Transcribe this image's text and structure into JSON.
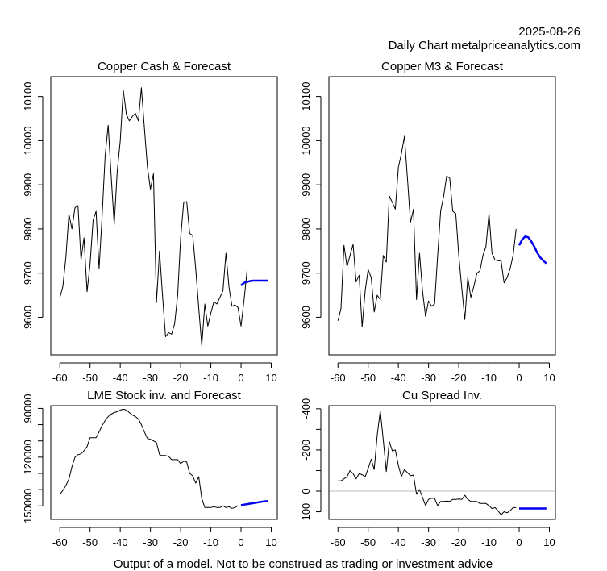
{
  "header": {
    "date": "2025-08-26",
    "subtitle": "Daily Chart metalpriceanalytics.com"
  },
  "footer": "Output of a model. Not to be construed as trading or investment advice",
  "colors": {
    "history": "#000000",
    "forecast": "#0000ee",
    "zero_line": "#bebebe"
  },
  "chart_data": [
    {
      "id": "cash",
      "type": "line",
      "title": "Copper Cash & Forecast",
      "xlabel": "",
      "ylabel": "",
      "xlim": [
        -63,
        12
      ],
      "ylim": [
        9515,
        10145
      ],
      "inverted": false,
      "xticks": [
        -60,
        -50,
        -40,
        -30,
        -20,
        -10,
        0,
        10
      ],
      "xtick_labels": [
        "-60",
        "-50",
        "-40",
        "-30",
        "-20",
        "-10",
        "0",
        "10"
      ],
      "yticks": [
        9600,
        9700,
        9800,
        9900,
        10000,
        10100
      ],
      "ytick_labels": [
        "9600",
        "9700",
        "9800",
        "9900",
        "10000",
        "10100"
      ],
      "series": [
        {
          "name": "history",
          "x_start": -60,
          "values": [
            9644,
            9670,
            9735,
            9834,
            9800,
            9848,
            9853,
            9730,
            9780,
            9658,
            9720,
            9820,
            9840,
            9710,
            9830,
            9965,
            10035,
            9920,
            9810,
            9930,
            10000,
            10115,
            10060,
            10045,
            10055,
            10062,
            10045,
            10120,
            10030,
            9940,
            9890,
            9925,
            9633,
            9750,
            9650,
            9556,
            9565,
            9562,
            9585,
            9650,
            9780,
            9860,
            9862,
            9790,
            9785,
            9710,
            9620,
            9536,
            9630,
            9580,
            9610,
            9635,
            9630,
            9645,
            9660,
            9745,
            9668,
            9625,
            9628,
            9622,
            9580,
            9640,
            9706
          ]
        },
        {
          "name": "forecast",
          "x_start": 0,
          "values": [
            9672,
            9678,
            9680,
            9682,
            9683,
            9683,
            9683,
            9683,
            9683,
            9683
          ]
        }
      ]
    },
    {
      "id": "m3",
      "type": "line",
      "title": "Copper M3 & Forecast",
      "xlabel": "",
      "ylabel": "",
      "xlim": [
        -63,
        12
      ],
      "ylim": [
        9515,
        10145
      ],
      "inverted": false,
      "xticks": [
        -60,
        -50,
        -40,
        -30,
        -20,
        -10,
        0,
        10
      ],
      "xtick_labels": [
        "-60",
        "-50",
        "-40",
        "-30",
        "-20",
        "-10",
        "0",
        "10"
      ],
      "yticks": [
        9600,
        9700,
        9800,
        9900,
        10000,
        10100
      ],
      "ytick_labels": [
        "9600",
        "9700",
        "9800",
        "9900",
        "10000",
        "10100"
      ],
      "series": [
        {
          "name": "history",
          "x_start": -60,
          "values": [
            9592,
            9620,
            9763,
            9715,
            9740,
            9765,
            9680,
            9695,
            9578,
            9660,
            9708,
            9690,
            9612,
            9650,
            9640,
            9740,
            9725,
            9875,
            9860,
            9845,
            9940,
            9970,
            10010,
            9915,
            9815,
            9845,
            9640,
            9745,
            9660,
            9602,
            9637,
            9625,
            9630,
            9740,
            9840,
            9875,
            9920,
            9915,
            9840,
            9835,
            9740,
            9665,
            9595,
            9690,
            9645,
            9670,
            9700,
            9705,
            9740,
            9760,
            9835,
            9745,
            9730,
            9728,
            9728,
            9678,
            9690,
            9710,
            9740,
            9800
          ]
        },
        {
          "name": "forecast",
          "x_start": 0,
          "values": [
            9763,
            9776,
            9783,
            9781,
            9772,
            9760,
            9746,
            9735,
            9728,
            9722
          ]
        }
      ]
    },
    {
      "id": "stock",
      "type": "line",
      "title": "LME Stock inv. and Forecast",
      "xlabel": "",
      "ylabel": "",
      "xlim": [
        -63,
        12
      ],
      "ylim": [
        158300,
        88300
      ],
      "inverted": true,
      "xticks": [
        -60,
        -50,
        -40,
        -30,
        -20,
        -10,
        0,
        10
      ],
      "xtick_labels": [
        "-60",
        "-50",
        "-40",
        "-30",
        "-20",
        "-10",
        "0",
        "10"
      ],
      "yticks": [
        90000,
        100000,
        110000,
        120000,
        130000,
        140000,
        150000
      ],
      "ytick_labels": [
        "90000",
        "",
        "",
        "120000",
        "",
        "",
        "150000"
      ],
      "series": [
        {
          "name": "history",
          "x_start": -60,
          "values": [
            143000,
            140500,
            137500,
            133500,
            126000,
            120000,
            118500,
            118000,
            116000,
            113500,
            108000,
            108000,
            108000,
            104500,
            100500,
            97500,
            95000,
            93500,
            92500,
            92000,
            91000,
            90500,
            91000,
            92500,
            94000,
            95000,
            96500,
            100000,
            104500,
            108500,
            109000,
            110000,
            111000,
            118500,
            119000,
            119000,
            119500,
            121500,
            121500,
            121500,
            124000,
            122500,
            123000,
            130000,
            131500,
            136000,
            132000,
            145500,
            151000,
            151000,
            151000,
            150500,
            151000,
            151000,
            150000,
            151000,
            150500,
            151500,
            151000,
            149800
          ]
        },
        {
          "name": "forecast",
          "x_start": 0,
          "values": [
            149500,
            149200,
            148900,
            148600,
            148300,
            148000,
            147700,
            147400,
            147200,
            147000
          ]
        }
      ]
    },
    {
      "id": "spread",
      "type": "line",
      "title": "Cu Spread Inv.",
      "xlabel": "",
      "ylabel": "",
      "xlim": [
        -63,
        12
      ],
      "ylim": [
        137,
        -415
      ],
      "inverted": true,
      "xticks": [
        -60,
        -50,
        -40,
        -30,
        -20,
        -10,
        0,
        10
      ],
      "xtick_labels": [
        "-60",
        "-50",
        "-40",
        "-30",
        "-20",
        "-10",
        "0",
        "10"
      ],
      "yticks": [
        -400,
        -300,
        -200,
        -100,
        0,
        100
      ],
      "ytick_labels": [
        "-400",
        "",
        "-200",
        "",
        "0",
        "100"
      ],
      "zero_line": 0,
      "series": [
        {
          "name": "history",
          "x_start": -60,
          "values": [
            -50,
            -50,
            -60,
            -70,
            -100,
            -85,
            -60,
            -85,
            -80,
            -70,
            -110,
            -155,
            -105,
            -270,
            -390,
            -250,
            -95,
            -240,
            -195,
            -200,
            -125,
            -70,
            -105,
            -90,
            -75,
            -78,
            15,
            -8,
            30,
            70,
            40,
            35,
            35,
            70,
            50,
            50,
            48,
            50,
            40,
            40,
            38,
            40,
            20,
            40,
            50,
            50,
            50,
            60,
            60,
            60,
            70,
            85,
            80,
            95,
            115,
            100,
            105,
            95,
            80,
            80
          ]
        },
        {
          "name": "forecast",
          "x_start": 0,
          "values": [
            84,
            84,
            84,
            84,
            84,
            84,
            84,
            84,
            84,
            84
          ]
        }
      ]
    }
  ]
}
